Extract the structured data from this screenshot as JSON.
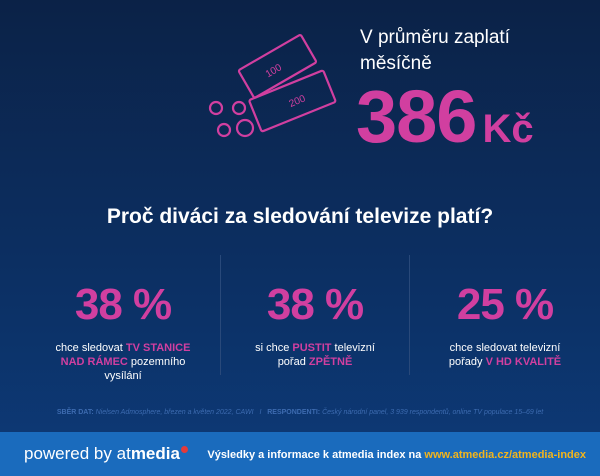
{
  "hero": {
    "headline": "V průměru zaplatí měsíčně",
    "amount": "386",
    "currency": "Kč",
    "banknotes": [
      "100",
      "200"
    ]
  },
  "question": "Proč diváci za sledování televize platí?",
  "stats": [
    {
      "value": "38 %",
      "text_before": "chce sledovat ",
      "highlight": "TV STANICE NAD RÁMEC",
      "text_after": " pozemního vysílání"
    },
    {
      "value": "38 %",
      "text_before": "si chce ",
      "highlight": "PUSTIT",
      "text_middle": " televizní pořad ",
      "highlight2": "ZPĚTNĚ"
    },
    {
      "value": "25 %",
      "text_before": "chce sledovat televizní pořady ",
      "highlight": "V HD KVALITĚ"
    }
  ],
  "source": {
    "label1": "SBĚR DAT:",
    "text1": "Nielsen Admosphere, březen a květen 2022, CAWI",
    "separator": "I",
    "label2": "RESPONDENTI:",
    "text2": "Český národní panel, 3 939 respondentů, online TV populace 15–69 let"
  },
  "footer": {
    "powered_by": "powered by",
    "brand_light": "at",
    "brand_bold": "media",
    "info_text": "Výsledky a informace k atmedia index na",
    "info_url": "www.atmedia.cz/atmedia-index"
  },
  "colors": {
    "accent": "#d13fa0",
    "background": "#0c2f62",
    "footer": "#1a6bbd",
    "url": "#f2b51c"
  },
  "icons": [
    "banknotes-icon",
    "coins-icon"
  ]
}
